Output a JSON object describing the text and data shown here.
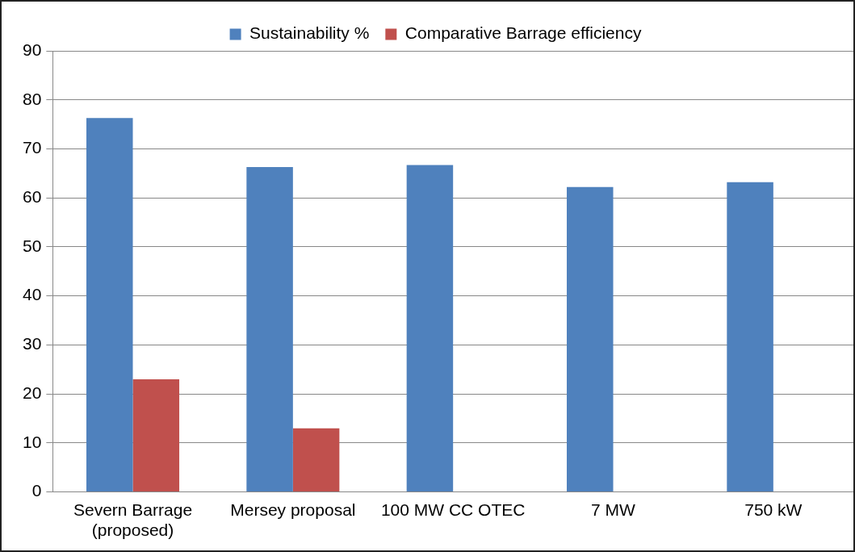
{
  "chart_data": {
    "type": "bar",
    "categories": [
      "Severn Barrage (proposed)",
      "Mersey proposal",
      "100 MW CC OTEC",
      "7 MW",
      "750 kW"
    ],
    "series": [
      {
        "name": "Sustainability %",
        "color": "#4f81bd",
        "values": [
          76.3,
          66.3,
          66.7,
          62.2,
          63.2
        ]
      },
      {
        "name": "Comparative Barrage efficiency",
        "color": "#c0504d",
        "values": [
          23,
          13,
          null,
          null,
          null
        ]
      }
    ],
    "ylim": [
      0,
      90
    ],
    "yticks": [
      0,
      10,
      20,
      30,
      40,
      50,
      60,
      70,
      80,
      90
    ],
    "grid": "y",
    "legend": "top"
  }
}
